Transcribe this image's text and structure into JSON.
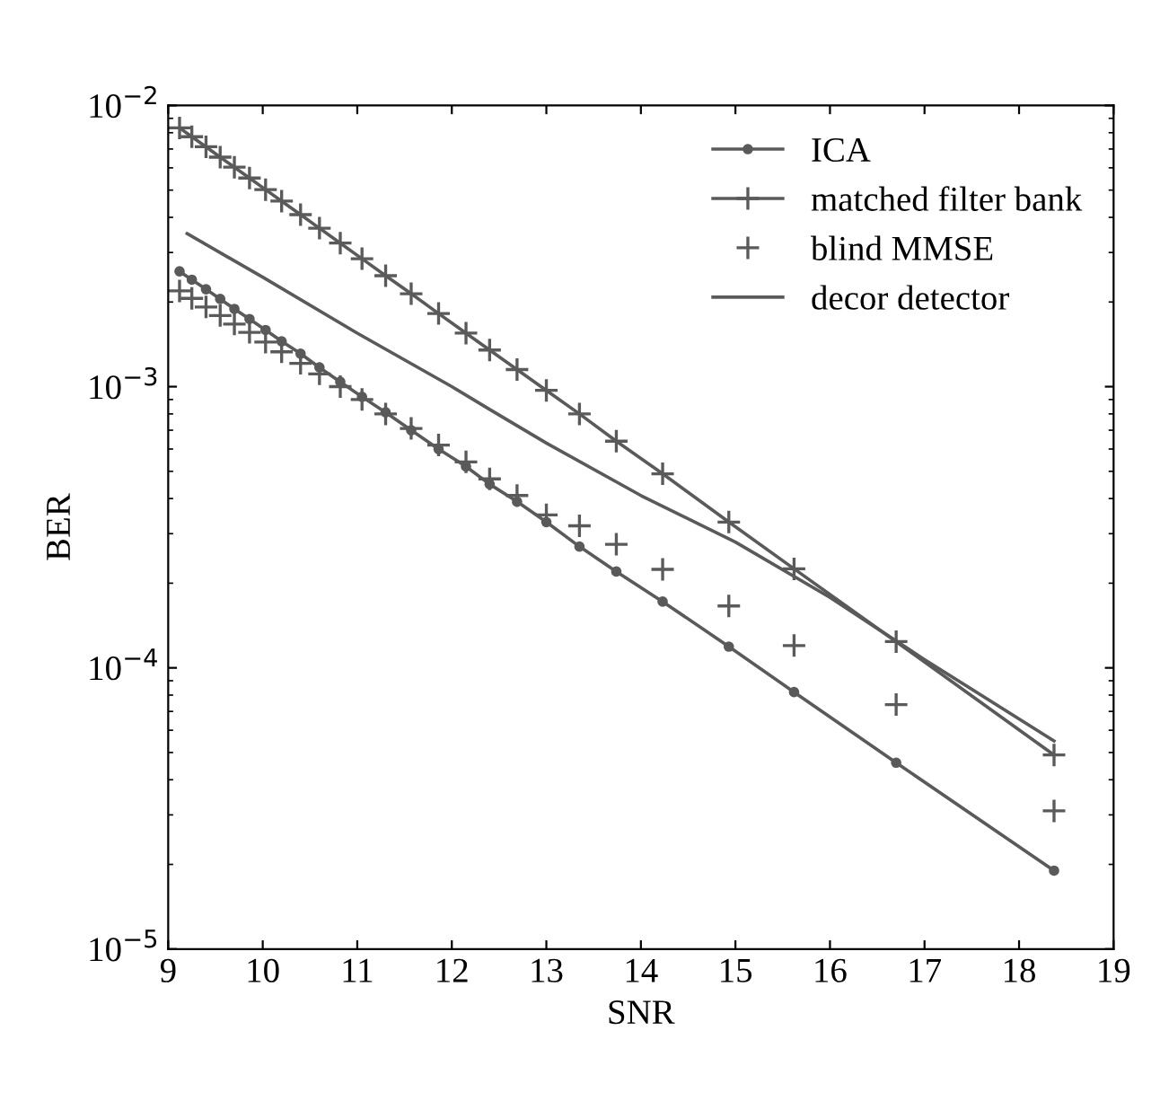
{
  "chart_data": {
    "type": "line",
    "xlabel": "SNR",
    "ylabel": "BER",
    "log": "y",
    "x": [
      9.12,
      9.25,
      9.4,
      9.55,
      9.7,
      9.86,
      10.03,
      10.2,
      10.4,
      10.6,
      10.82,
      11.05,
      11.3,
      11.57,
      11.86,
      12.15,
      12.4,
      12.69,
      13.0,
      13.35,
      13.74,
      14.23,
      14.93,
      15.62,
      16.7,
      18.37
    ],
    "series": [
      {
        "name": "ICA",
        "type": "line",
        "marker": "circle",
        "color": "#5a5a5a",
        "values": [
          0.00257,
          0.0024,
          0.00222,
          0.00205,
          0.00189,
          0.00174,
          0.00159,
          0.00145,
          0.00131,
          0.00117,
          0.00104,
          0.00092,
          0.00081,
          0.0007,
          0.0006,
          0.00052,
          0.00045,
          0.00039,
          0.00033,
          0.00027,
          0.00022,
          0.000172,
          0.000119,
          8.2e-05,
          4.6e-05,
          1.9e-05
        ]
      },
      {
        "name": "matched filter bank",
        "type": "line",
        "marker": "cross",
        "color": "#5a5a5a",
        "values": [
          0.00832,
          0.00774,
          0.00713,
          0.00655,
          0.00603,
          0.00552,
          0.00502,
          0.00457,
          0.00409,
          0.00366,
          0.00324,
          0.00285,
          0.00248,
          0.00214,
          0.00182,
          0.00155,
          0.00135,
          0.00115,
          0.00097,
          0.0008,
          0.00064,
          0.00049,
          0.00033,
          0.000225,
          0.000124,
          4.9e-05
        ]
      },
      {
        "name": "blind MMSE",
        "type": "scatter",
        "marker": "cross",
        "color": "#5a5a5a",
        "values": [
          0.00219,
          0.00206,
          0.00192,
          0.00179,
          0.00167,
          0.00156,
          0.00144,
          0.00133,
          0.00121,
          0.00111,
          0.001,
          0.0009,
          0.0008,
          0.00071,
          0.00062,
          0.00054,
          0.00047,
          0.00041,
          0.00035,
          0.00032,
          0.000275,
          0.000224,
          0.000166,
          0.00012,
          7.4e-05,
          3.1e-05
        ]
      },
      {
        "name": "decor detector",
        "type": "line",
        "marker": "none",
        "color": "#5a5a5a",
        "x": [
          9.2,
          10,
          11,
          12,
          12.4,
          13,
          14,
          15,
          16,
          17,
          18.37
        ],
        "values": [
          0.0035,
          0.00245,
          0.00155,
          0.001,
          0.00083,
          0.00063,
          0.00041,
          0.00028,
          0.000178,
          0.000107,
          5.5e-05
        ]
      }
    ],
    "xlim": [
      9,
      19
    ],
    "xticks": [
      9,
      10,
      11,
      12,
      13,
      14,
      15,
      16,
      17,
      18,
      19
    ],
    "ylim": [
      1e-05,
      0.01
    ],
    "yticks": [
      {
        "value": 0.01,
        "label": "10$^{−2}$"
      },
      {
        "value": 0.001,
        "label": "10$^{−3}$"
      },
      {
        "value": 0.0001,
        "label": "10$^{−4}$"
      },
      {
        "value": 1e-05,
        "label": "10$^{−5}$"
      }
    ],
    "grid": false,
    "legend": "top right"
  }
}
